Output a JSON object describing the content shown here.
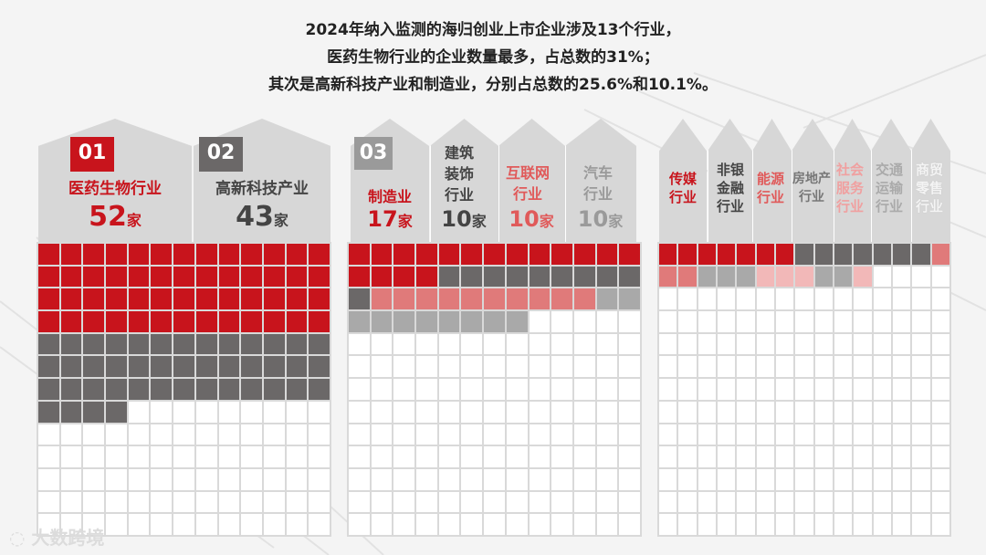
{
  "title_lines": [
    "2024年纳入监测的海归创业上市企业涉及13个行业，",
    "医药生物行业的企业数量最多，占总数的31%；",
    "其次是高新科技产业和制造业，分别占总数的25.6%和10.1%。"
  ],
  "colors": {
    "red": "#c8141c",
    "dark_gray": "#6b6868",
    "light_red": "#e07a7a",
    "light_gray": "#a9a9a9",
    "pale_red": "#f2b8b8",
    "empty": "#ffffff"
  },
  "group1": {
    "ranks": [
      "01",
      "02"
    ],
    "industries": [
      {
        "name": "医药生物行业",
        "count": "52",
        "unit": "家"
      },
      {
        "name": "高新科技产业",
        "count": "43",
        "unit": "家"
      }
    ]
  },
  "group2": {
    "rank": "03",
    "industries": [
      {
        "name": "制造业",
        "count": "17",
        "unit": "家"
      },
      {
        "name": "建筑装饰行业",
        "count": "10",
        "unit": "家"
      },
      {
        "name": "互联网行业",
        "count": "10",
        "unit": "家"
      },
      {
        "name": "汽车行业",
        "count": "10",
        "unit": "家"
      }
    ]
  },
  "group3": {
    "industries": [
      {
        "name": "传媒行业"
      },
      {
        "name": "非银金融行业"
      },
      {
        "name": "能源行业"
      },
      {
        "name": "房地产行业"
      },
      {
        "name": "社会服务行业"
      },
      {
        "name": "交通运输行业"
      },
      {
        "name": "商贸零售行业"
      }
    ]
  },
  "grid_fill": {
    "panel1": {
      "cols": 13,
      "rows": 13,
      "segments": [
        {
          "color": "red",
          "count": 52
        },
        {
          "color": "dark_gray",
          "count": 43
        }
      ]
    },
    "panel2": {
      "cols": 13,
      "rows": 13,
      "segments": [
        {
          "color": "red",
          "count": 17
        },
        {
          "color": "dark_gray",
          "count": 10
        },
        {
          "color": "light_red",
          "count": 10
        },
        {
          "color": "light_gray",
          "count": 10
        }
      ]
    },
    "panel3": {
      "cols": 15,
      "rows": 13,
      "segments": [
        {
          "color": "red",
          "count": 7
        },
        {
          "color": "dark_gray",
          "count": 7
        },
        {
          "color": "light_red",
          "count": 3
        },
        {
          "color": "light_gray",
          "count": 3
        },
        {
          "color": "pale_red",
          "count": 3
        },
        {
          "color": "light_gray",
          "count": 2
        },
        {
          "color": "pale_red",
          "count": 1
        }
      ]
    }
  },
  "logo_text": "大数跨境"
}
